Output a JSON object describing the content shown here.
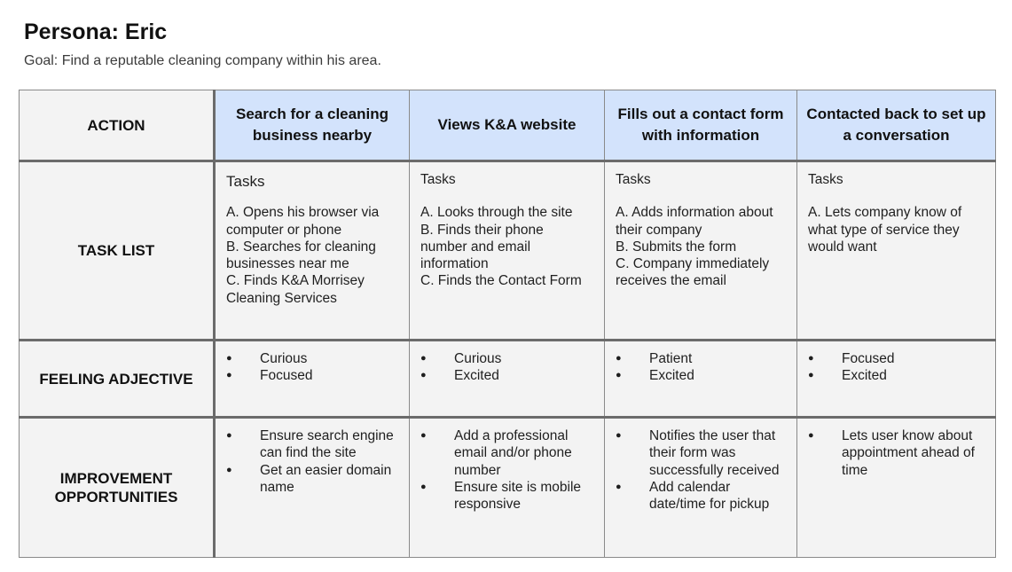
{
  "persona_title": "Persona: Eric",
  "goal": "Goal: Find a reputable cleaning company within his area.",
  "row_headers": {
    "action": "ACTION",
    "task_list": "TASK LIST",
    "feeling": "FEELING ADJECTIVE",
    "improvement_line1": "IMPROVEMENT",
    "improvement_line2": "OPPORTUNITIES"
  },
  "stages": [
    {
      "action": "Search for a cleaning business nearby",
      "tasks_label": "Tasks",
      "tasks": [
        "A. Opens his browser via computer or phone",
        "B. Searches for cleaning businesses near me",
        "C. Finds K&A Morrisey Cleaning Services"
      ],
      "feelings": [
        "Curious",
        "Focused"
      ],
      "opportunities": [
        "Ensure search engine can find the site",
        "Get an easier domain name"
      ]
    },
    {
      "action": "Views K&A website",
      "tasks_label": "Tasks",
      "tasks": [
        "A. Looks through the site",
        "B. Finds their phone number and email information",
        "C. Finds the Contact Form"
      ],
      "feelings": [
        "Curious",
        "Excited"
      ],
      "opportunities": [
        "Add a professional email and/or phone number",
        "Ensure site is mobile responsive"
      ]
    },
    {
      "action": "Fills out a contact form with information",
      "tasks_label": "Tasks",
      "tasks": [
        "A. Adds information about their company",
        "B. Submits the form",
        "C. Company immediately receives the email"
      ],
      "feelings": [
        "Patient",
        "Excited"
      ],
      "opportunities": [
        "Notifies the user that their form was successfully received",
        "Add calendar date/time for pickup"
      ]
    },
    {
      "action": "Contacted back to set up a conversation",
      "tasks_label": "Tasks",
      "tasks": [
        "A. Lets company know of what type of service they would want"
      ],
      "feelings": [
        "Focused",
        "Excited"
      ],
      "opportunities": [
        "Lets user know about appointment ahead of time"
      ]
    }
  ]
}
